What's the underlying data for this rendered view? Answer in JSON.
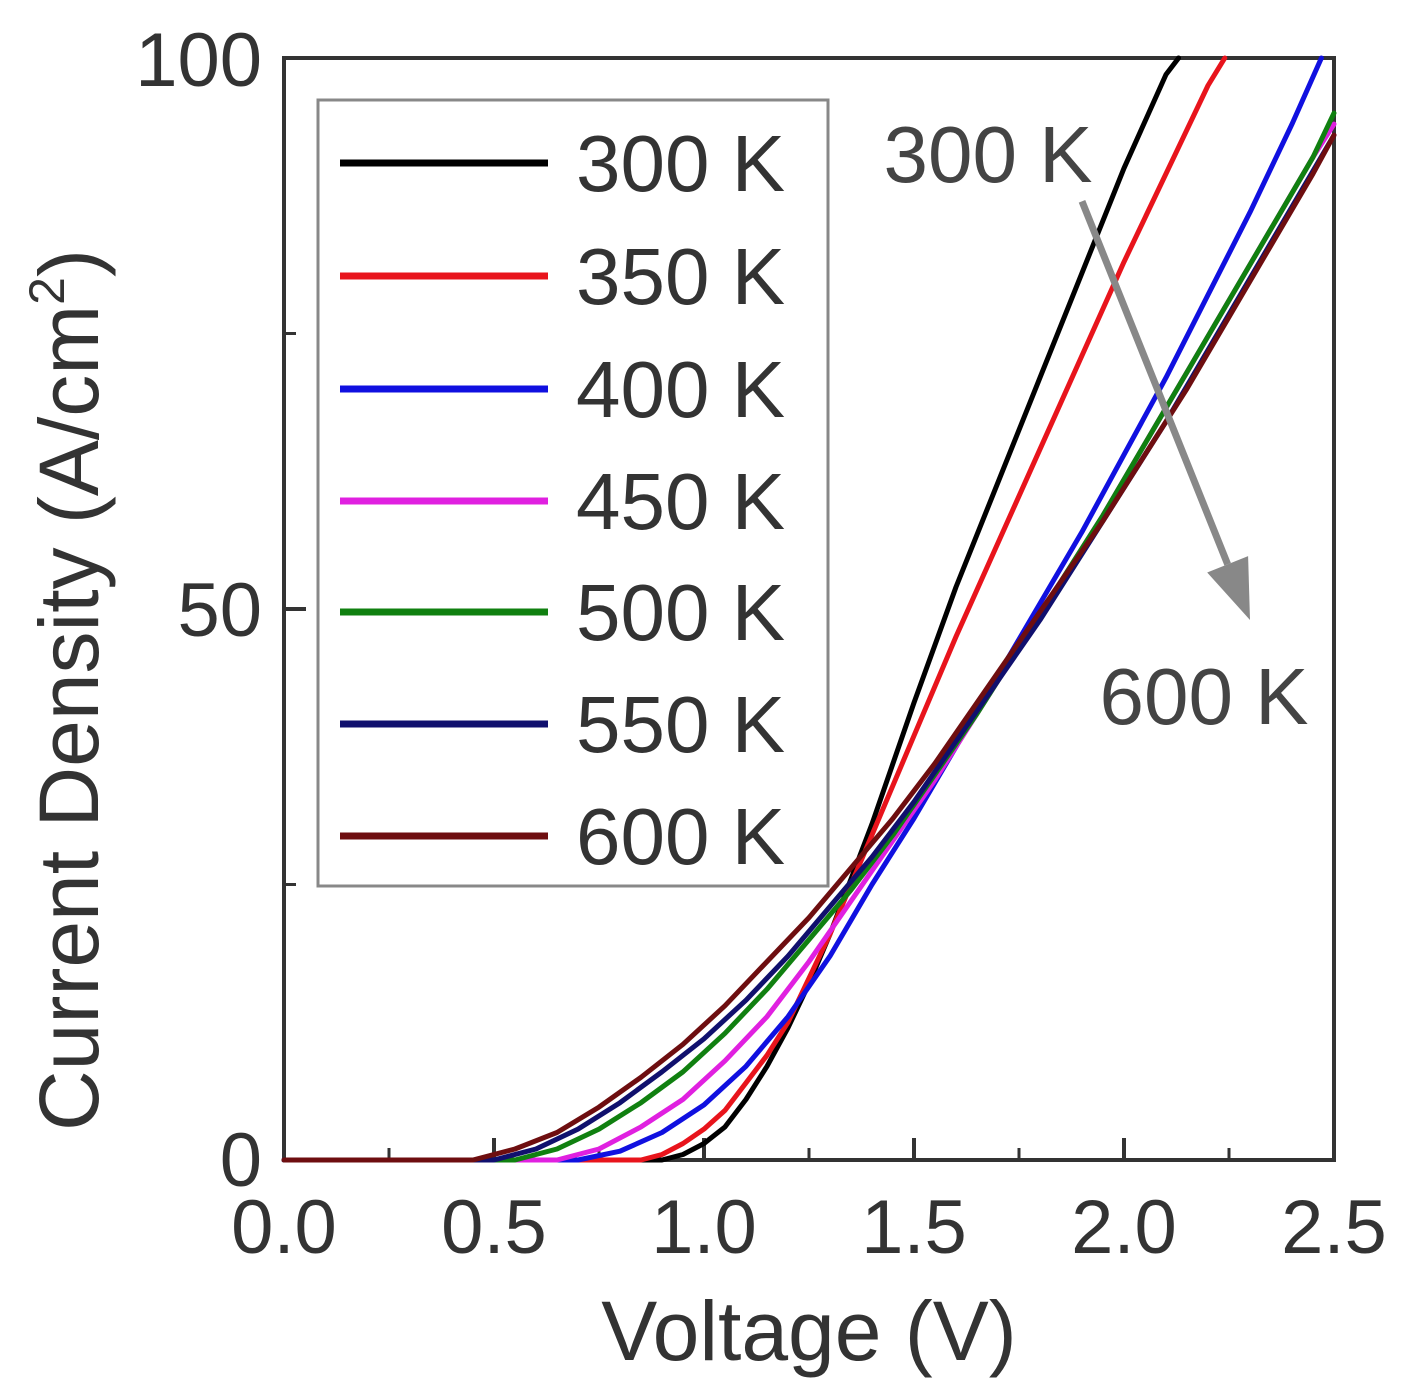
{
  "chart_data": {
    "type": "line",
    "title": "",
    "xlabel": "Voltage (V)",
    "ylabel_main": "Current Density (A/cm",
    "ylabel_sup": "2",
    "ylabel_close": ")",
    "xlim": [
      0.0,
      2.5
    ],
    "ylim": [
      0,
      100
    ],
    "xticks": [
      0.0,
      0.5,
      1.0,
      1.5,
      2.0,
      2.5
    ],
    "xtick_labels": [
      "0.0",
      "0.5",
      "1.0",
      "1.5",
      "2.0",
      "2.5"
    ],
    "xminor": [
      0.25,
      0.75,
      1.25,
      1.75,
      2.25
    ],
    "yticks": [
      0,
      50,
      100
    ],
    "ytick_labels": [
      "0",
      "50",
      "100"
    ],
    "yminor": [
      25,
      75
    ],
    "legend_position": "upper-left",
    "series": [
      {
        "name": "300 K",
        "color": "#000000",
        "x": [
          0.9,
          0.95,
          1.0,
          1.05,
          1.1,
          1.15,
          1.2,
          1.25,
          1.3,
          1.35,
          1.4,
          1.45,
          1.5,
          1.6,
          1.7,
          1.8,
          1.9,
          2.0,
          2.1,
          2.13
        ],
        "y": [
          0,
          0.5,
          1.5,
          3,
          5.5,
          8.5,
          12,
          16,
          20.5,
          25.5,
          30.5,
          36,
          41.5,
          52,
          61.5,
          71,
          80.5,
          90,
          98.5,
          100
        ]
      },
      {
        "name": "350 K",
        "color": "#e8141c",
        "x": [
          0.85,
          0.9,
          0.95,
          1.0,
          1.05,
          1.1,
          1.15,
          1.2,
          1.25,
          1.3,
          1.35,
          1.4,
          1.45,
          1.5,
          1.6,
          1.7,
          1.8,
          1.9,
          2.0,
          2.1,
          2.2,
          2.24
        ],
        "y": [
          0,
          0.5,
          1.5,
          2.8,
          4.5,
          7,
          9.5,
          12.5,
          16.5,
          20.5,
          25,
          29.5,
          34,
          38.5,
          47.5,
          56,
          64.5,
          73,
          81.5,
          89.5,
          97.5,
          100
        ]
      },
      {
        "name": "400 K",
        "color": "#1010e0",
        "x": [
          0.7,
          0.8,
          0.9,
          1.0,
          1.1,
          1.2,
          1.3,
          1.4,
          1.5,
          1.6,
          1.7,
          1.8,
          1.9,
          2.0,
          2.1,
          2.2,
          2.3,
          2.4,
          2.47
        ],
        "y": [
          0,
          0.8,
          2.5,
          5,
          8.5,
          13,
          18.5,
          25,
          31,
          37.5,
          44,
          50.5,
          57,
          64,
          71,
          78.5,
          86,
          94,
          100
        ]
      },
      {
        "name": "450 K",
        "color": "#e020e0",
        "x": [
          0.65,
          0.75,
          0.85,
          0.95,
          1.05,
          1.15,
          1.25,
          1.35,
          1.45,
          1.55,
          1.65,
          1.75,
          1.85,
          1.95,
          2.05,
          2.15,
          2.25,
          2.35,
          2.45,
          2.5
        ],
        "y": [
          0,
          1,
          3,
          5.5,
          9,
          13,
          18,
          23.5,
          29,
          34.5,
          40.5,
          46.5,
          52.5,
          58.5,
          65,
          71.5,
          78,
          84.5,
          91,
          94
        ]
      },
      {
        "name": "500 K",
        "color": "#108010",
        "x": [
          0.55,
          0.65,
          0.75,
          0.85,
          0.95,
          1.05,
          1.15,
          1.25,
          1.35,
          1.45,
          1.55,
          1.65,
          1.75,
          1.85,
          1.95,
          2.05,
          2.15,
          2.25,
          2.35,
          2.45,
          2.5
        ],
        "y": [
          0,
          1,
          2.8,
          5.2,
          8,
          11.5,
          15.5,
          20,
          24.5,
          29.5,
          35,
          40.5,
          46.5,
          52.5,
          58.5,
          65,
          71.5,
          78,
          84.5,
          91,
          95
        ]
      },
      {
        "name": "550 K",
        "color": "#10106e",
        "x": [
          0.5,
          0.6,
          0.7,
          0.8,
          0.9,
          1.0,
          1.1,
          1.2,
          1.3,
          1.4,
          1.5,
          1.6,
          1.7,
          1.8,
          1.9,
          2.0,
          2.1,
          2.2,
          2.3,
          2.4,
          2.5
        ],
        "y": [
          0,
          1,
          2.8,
          5.2,
          8,
          11,
          14.5,
          18.5,
          23,
          27.5,
          32.5,
          38,
          43.5,
          49,
          55,
          61,
          67,
          73.5,
          80,
          86.5,
          93
        ]
      },
      {
        "name": "600 K",
        "color": "#6e0e10",
        "x": [
          0.45,
          0.55,
          0.65,
          0.75,
          0.85,
          0.95,
          1.05,
          1.15,
          1.25,
          1.35,
          1.45,
          1.55,
          1.65,
          1.75,
          1.85,
          1.95,
          2.05,
          2.15,
          2.25,
          2.35,
          2.45,
          2.5
        ],
        "y": [
          0,
          1,
          2.5,
          4.8,
          7.5,
          10.5,
          14,
          18,
          22,
          26.5,
          31,
          36,
          41.5,
          47,
          52.5,
          58,
          64,
          70,
          76.5,
          83,
          89.5,
          93
        ]
      }
    ],
    "annotations": [
      {
        "text": "300 K",
        "role": "arrow-start"
      },
      {
        "text": "600 K",
        "role": "arrow-end"
      }
    ],
    "arrow": {
      "from": [
        1.9,
        87
      ],
      "to": [
        2.3,
        49
      ],
      "color": "#888888"
    }
  }
}
